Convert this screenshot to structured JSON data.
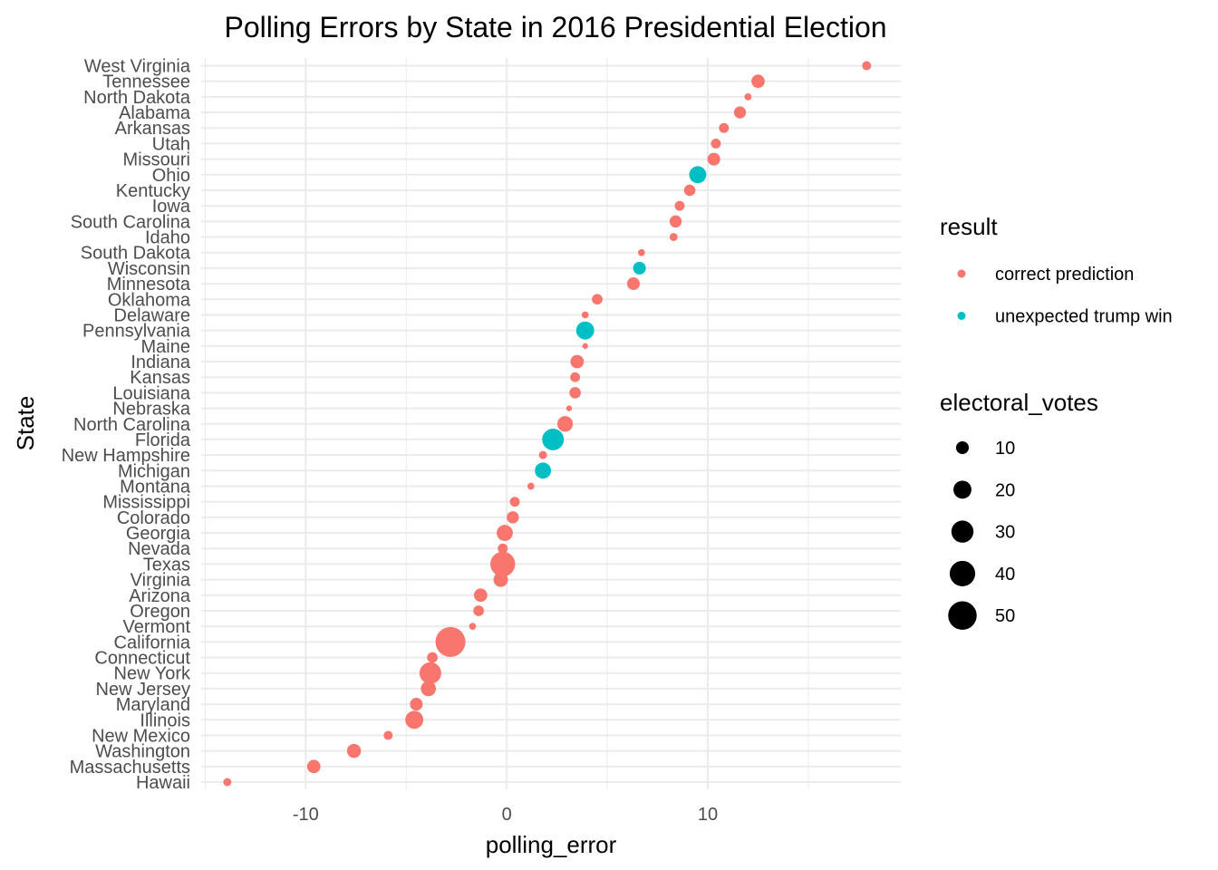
{
  "chart_data": {
    "type": "scatter",
    "title": "Polling Errors by State in 2016 Presidential Election",
    "xlabel": "polling_error",
    "ylabel": "State",
    "xlim": [
      -15.2,
      19.6
    ],
    "x_ticks": [
      -10,
      0,
      10
    ],
    "grid": true,
    "legend_position": "right",
    "color_legend": {
      "title": "result",
      "entries": [
        {
          "label": "correct prediction",
          "color": "#F8766D"
        },
        {
          "label": "unexpected trump win",
          "color": "#00BFC4"
        }
      ]
    },
    "size_legend": {
      "title": "electoral_votes",
      "entries": [
        {
          "label": "10",
          "value": 10
        },
        {
          "label": "20",
          "value": 20
        },
        {
          "label": "30",
          "value": 30
        },
        {
          "label": "40",
          "value": 40
        },
        {
          "label": "50",
          "value": 50
        }
      ]
    },
    "points": [
      {
        "state": "West Virginia",
        "x": 17.9,
        "votes": 5,
        "result": "correct prediction"
      },
      {
        "state": "Tennessee",
        "x": 12.5,
        "votes": 11,
        "result": "correct prediction"
      },
      {
        "state": "North Dakota",
        "x": 12.0,
        "votes": 3,
        "result": "correct prediction"
      },
      {
        "state": "Alabama",
        "x": 11.6,
        "votes": 9,
        "result": "correct prediction"
      },
      {
        "state": "Arkansas",
        "x": 10.8,
        "votes": 6,
        "result": "correct prediction"
      },
      {
        "state": "Utah",
        "x": 10.4,
        "votes": 6,
        "result": "correct prediction"
      },
      {
        "state": "Missouri",
        "x": 10.3,
        "votes": 10,
        "result": "correct prediction"
      },
      {
        "state": "Ohio",
        "x": 9.5,
        "votes": 18,
        "result": "unexpected trump win"
      },
      {
        "state": "Kentucky",
        "x": 9.1,
        "votes": 8,
        "result": "correct prediction"
      },
      {
        "state": "Iowa",
        "x": 8.6,
        "votes": 6,
        "result": "correct prediction"
      },
      {
        "state": "South Carolina",
        "x": 8.4,
        "votes": 9,
        "result": "correct prediction"
      },
      {
        "state": "Idaho",
        "x": 8.3,
        "votes": 4,
        "result": "correct prediction"
      },
      {
        "state": "South Dakota",
        "x": 6.7,
        "votes": 3,
        "result": "correct prediction"
      },
      {
        "state": "Wisconsin",
        "x": 6.6,
        "votes": 10,
        "result": "unexpected trump win"
      },
      {
        "state": "Minnesota",
        "x": 6.3,
        "votes": 10,
        "result": "correct prediction"
      },
      {
        "state": "Oklahoma",
        "x": 4.5,
        "votes": 7,
        "result": "correct prediction"
      },
      {
        "state": "Delaware",
        "x": 3.9,
        "votes": 3,
        "result": "correct prediction"
      },
      {
        "state": "Pennsylvania",
        "x": 3.9,
        "votes": 20,
        "result": "unexpected trump win"
      },
      {
        "state": "Maine",
        "x": 3.9,
        "votes": 2,
        "result": "correct prediction"
      },
      {
        "state": "Indiana",
        "x": 3.5,
        "votes": 11,
        "result": "correct prediction"
      },
      {
        "state": "Kansas",
        "x": 3.4,
        "votes": 6,
        "result": "correct prediction"
      },
      {
        "state": "Louisiana",
        "x": 3.4,
        "votes": 8,
        "result": "correct prediction"
      },
      {
        "state": "Nebraska",
        "x": 3.1,
        "votes": 2,
        "result": "correct prediction"
      },
      {
        "state": "North Carolina",
        "x": 2.9,
        "votes": 15,
        "result": "correct prediction"
      },
      {
        "state": "Florida",
        "x": 2.3,
        "votes": 29,
        "result": "unexpected trump win"
      },
      {
        "state": "New Hampshire",
        "x": 1.8,
        "votes": 4,
        "result": "correct prediction"
      },
      {
        "state": "Michigan",
        "x": 1.8,
        "votes": 16,
        "result": "unexpected trump win"
      },
      {
        "state": "Montana",
        "x": 1.2,
        "votes": 3,
        "result": "correct prediction"
      },
      {
        "state": "Mississippi",
        "x": 0.4,
        "votes": 6,
        "result": "correct prediction"
      },
      {
        "state": "Colorado",
        "x": 0.3,
        "votes": 9,
        "result": "correct prediction"
      },
      {
        "state": "Georgia",
        "x": -0.1,
        "votes": 16,
        "result": "correct prediction"
      },
      {
        "state": "Nevada",
        "x": -0.2,
        "votes": 6,
        "result": "correct prediction"
      },
      {
        "state": "Texas",
        "x": -0.2,
        "votes": 38,
        "result": "correct prediction"
      },
      {
        "state": "Virginia",
        "x": -0.3,
        "votes": 13,
        "result": "correct prediction"
      },
      {
        "state": "Arizona",
        "x": -1.3,
        "votes": 11,
        "result": "correct prediction"
      },
      {
        "state": "Oregon",
        "x": -1.4,
        "votes": 7,
        "result": "correct prediction"
      },
      {
        "state": "Vermont",
        "x": -1.7,
        "votes": 3,
        "result": "correct prediction"
      },
      {
        "state": "California",
        "x": -2.8,
        "votes": 55,
        "result": "correct prediction"
      },
      {
        "state": "Connecticut",
        "x": -3.7,
        "votes": 7,
        "result": "correct prediction"
      },
      {
        "state": "New York",
        "x": -3.8,
        "votes": 29,
        "result": "correct prediction"
      },
      {
        "state": "New Jersey",
        "x": -3.9,
        "votes": 14,
        "result": "correct prediction"
      },
      {
        "state": "Maryland",
        "x": -4.5,
        "votes": 10,
        "result": "correct prediction"
      },
      {
        "state": "Illinois",
        "x": -4.6,
        "votes": 20,
        "result": "correct prediction"
      },
      {
        "state": "New Mexico",
        "x": -5.9,
        "votes": 5,
        "result": "correct prediction"
      },
      {
        "state": "Washington",
        "x": -7.6,
        "votes": 12,
        "result": "correct prediction"
      },
      {
        "state": "Massachusetts",
        "x": -9.6,
        "votes": 11,
        "result": "correct prediction"
      },
      {
        "state": "Hawaii",
        "x": -13.9,
        "votes": 4,
        "result": "correct prediction"
      }
    ]
  }
}
